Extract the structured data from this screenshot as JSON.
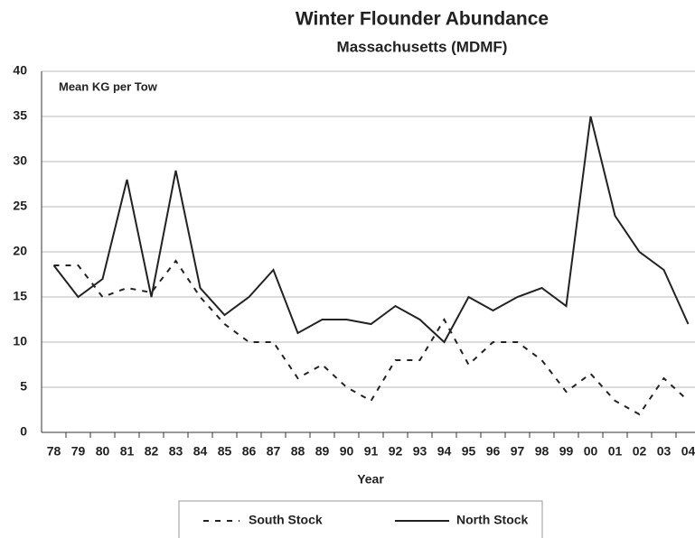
{
  "chart_data": {
    "type": "line",
    "title": "Winter Flounder Abundance",
    "subtitle": "Massachusetts (MDMF)",
    "y_label": "Mean KG per Tow",
    "x_label": "Year",
    "categories": [
      "78",
      "79",
      "80",
      "81",
      "82",
      "83",
      "84",
      "85",
      "86",
      "87",
      "88",
      "89",
      "90",
      "91",
      "92",
      "93",
      "94",
      "95",
      "96",
      "97",
      "98",
      "99",
      "00",
      "01",
      "02",
      "03",
      "04"
    ],
    "series": [
      {
        "name": "South Stock",
        "color": "#222222",
        "style": "dashed",
        "values": [
          18.5,
          18.5,
          15,
          16,
          15.5,
          19,
          15,
          12,
          10,
          10,
          6,
          7.5,
          5,
          3.5,
          8,
          8,
          12.5,
          7.5,
          10,
          10,
          8,
          4.5,
          6.5,
          3.5,
          2,
          6,
          3.5
        ]
      },
      {
        "name": "North Stock",
        "color": "#222222",
        "style": "solid",
        "values": [
          18.5,
          15,
          17,
          28,
          15,
          29,
          16,
          13,
          15,
          18,
          11,
          12.5,
          12.5,
          12,
          14,
          12.5,
          10,
          15,
          13.5,
          15,
          16,
          14,
          35,
          24,
          20,
          18,
          12
        ]
      }
    ],
    "ylim": [
      0,
      40
    ],
    "yticks": [
      0,
      5,
      10,
      15,
      20,
      25,
      30,
      35,
      40
    ],
    "grid": true
  }
}
